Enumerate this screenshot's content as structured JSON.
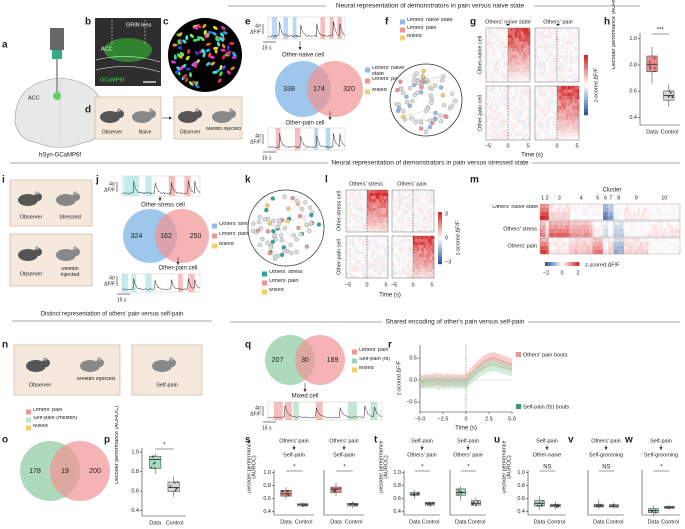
{
  "sections": {
    "naive": "Neural representation of demonstrators in pain versus naive state",
    "stressed": "Neural representation of demonstrators in pain versus stressed state",
    "distinct": "Distinct representation of others' pain versus self-pain",
    "shared": "Shared encoding of other's pain versus self-pain"
  },
  "a": {
    "label": "a",
    "region": "ACC",
    "virus": "hSyn-GCaMP6f"
  },
  "b": {
    "label": "b",
    "lens": "GRIN lens",
    "region": "ACC",
    "indicator": "GCaMP6f"
  },
  "c": {
    "label": "c"
  },
  "d": {
    "label": "d",
    "observer": "Observer",
    "naive": "Naive",
    "observer2": "Observer",
    "injected": "Melittin injected"
  },
  "e": {
    "label": "e",
    "scale_y": [
      "4σ",
      "ΔF/F"
    ],
    "scale_x": "15 s",
    "cell_top": "Other-naive cell",
    "venn": [
      338,
      174,
      320
    ],
    "legend": [
      "Others' naive state",
      "Others' pain",
      "Mixed"
    ],
    "cell_bottom": "Other-pain cell",
    "scale_y2": [
      "4σ",
      "ΔF/F"
    ],
    "scale_x2": "15 s"
  },
  "f": {
    "label": "f",
    "legend": [
      "Others' naive state",
      "Others' pain",
      "Mixed"
    ]
  },
  "g": {
    "label": "g",
    "columns": [
      "Others' naive state",
      "Others' pain"
    ],
    "rows": [
      "Other-naive cell",
      "Other-pain cell"
    ],
    "xticks": [
      [
        "−5",
        "0",
        "5"
      ],
      [
        "0",
        "5"
      ]
    ],
    "xlabel": "Time (s)",
    "colorbar": "z-scored ΔF/F"
  },
  "h": {
    "label": "h",
    "sig": "***",
    "ylabel": "Decoder performance (AUROC)",
    "yticks": [
      "0.4",
      "0.6",
      "0.8",
      "1.0"
    ],
    "x": [
      "Data",
      "Control"
    ]
  },
  "i": {
    "label": "i",
    "observer": "Observer",
    "stressed": "Stressed",
    "observer2": "Observer",
    "injected": "Melittin injected"
  },
  "j": {
    "label": "j",
    "scale_y": [
      "4σ",
      "ΔF/F"
    ],
    "cell_top": "Other-stress cell",
    "venn": [
      324,
      162,
      250
    ],
    "legend": [
      "Others' stress",
      "Others' pain",
      "Mixed"
    ],
    "cell_bottom": "Other-pain cell",
    "scale_y2": [
      "4σ",
      "ΔF/F"
    ],
    "scale_x2": "15 s"
  },
  "k": {
    "label": "k",
    "legend": [
      "Others' stress",
      "Others' pain",
      "Mixed"
    ]
  },
  "l": {
    "label": "l",
    "columns": [
      "Others' stress",
      "Others' pain"
    ],
    "rows": [
      "Other-stress cell",
      "Other-pain cell"
    ],
    "xticks": [
      [
        "−5",
        "0",
        "5"
      ],
      [
        "−5",
        "0",
        "5"
      ]
    ],
    "xlabel": "Time (s)",
    "cticks": [
      "3",
      "0",
      "−3"
    ],
    "colorbar": "z-scored ΔF/F"
  },
  "m": {
    "label": "m",
    "cluster": "Cluster",
    "clusters": [
      "1",
      "2",
      "3",
      "4",
      "5",
      "6",
      "7",
      "8",
      "9",
      "10"
    ],
    "rows": [
      "Others' naive state",
      "Others' stress",
      "Others' pain"
    ],
    "cticks": [
      "−2",
      "0",
      "2"
    ],
    "colorbar": "z-scored ΔF/F"
  },
  "n": {
    "label": "n",
    "observer": "Observer",
    "injected": "Melittin injected",
    "self": "Self-pain"
  },
  "o": {
    "label": "o",
    "legend": [
      "Others' pain",
      "Self-pain (melittin)",
      "Mixed"
    ],
    "venn": [
      178,
      19,
      200
    ]
  },
  "p": {
    "label": "p",
    "sig": "*",
    "ylabel": "Decoder performance (AUROC)",
    "yticks": [
      "0.4",
      "0.6",
      "0.8",
      "1.0"
    ],
    "x": [
      "Data",
      "Control"
    ]
  },
  "q": {
    "label": "q",
    "venn": [
      207,
      30,
      189
    ],
    "legend": [
      "Others' pain",
      "Self-pain (fs)",
      "Mixed"
    ],
    "cell": "Mixed cell",
    "scale_y": [
      "4σ",
      "ΔF/F"
    ],
    "scale_x": "15 s"
  },
  "r": {
    "label": "r",
    "ylabel": "z-scored ΔF/F",
    "yticks": [
      "−0.5",
      "0.0",
      "0.5"
    ],
    "xticks": [
      "−5.0",
      "−2.5",
      "0",
      "2.5",
      "5.0"
    ],
    "xlabel": "Time (s)",
    "legend": [
      "Others' pain bouts",
      "Self-pain (fs) bouts"
    ]
  },
  "s": {
    "label": "s",
    "ylabel": "Decoder performance (AUROC)",
    "yticks": [
      "0.4",
      "0.6",
      "0.8",
      "1.0"
    ],
    "plots": [
      {
        "from": "Others' pain",
        "to": "Self-pain",
        "sig": "*",
        "x": [
          "Data",
          "Control"
        ]
      },
      {
        "from": "Others' pain",
        "to": "Self-pain",
        "sig": "*",
        "x": [
          "Data",
          "Control"
        ]
      }
    ]
  },
  "t": {
    "label": "t",
    "ylabel": "Decoder performance (AUROC)",
    "yticks": [
      "0.4",
      "0.6",
      "0.8",
      "1.0"
    ],
    "plots": [
      {
        "from": "Self-pain",
        "to": "Others' pain",
        "sig": "*",
        "x": [
          "Data",
          "Control"
        ]
      },
      {
        "from": "Self-pain",
        "to": "Others' pain",
        "sig": "*",
        "x": [
          "Data",
          "Control"
        ]
      }
    ]
  },
  "u": {
    "label": "u",
    "ylabel": "Decoder performance (AUROC)",
    "yticks": [
      "0.4",
      "0.6",
      "0.8",
      "1.0"
    ],
    "plots": [
      {
        "from": "Self-pain",
        "to": "Other-naive",
        "sig": "NS",
        "x": [
          "Data",
          "Control"
        ]
      }
    ]
  },
  "v": {
    "label": "v",
    "plots": [
      {
        "from": "Others' pain",
        "to": "Self-grooming",
        "sig": "NS",
        "x": [
          "Data",
          "Control"
        ]
      }
    ]
  },
  "w": {
    "label": "w",
    "plots": [
      {
        "from": "Self-pain",
        "to": "Self-grooming",
        "sig": "*",
        "x": [
          "Data",
          "Control"
        ]
      }
    ]
  }
}
